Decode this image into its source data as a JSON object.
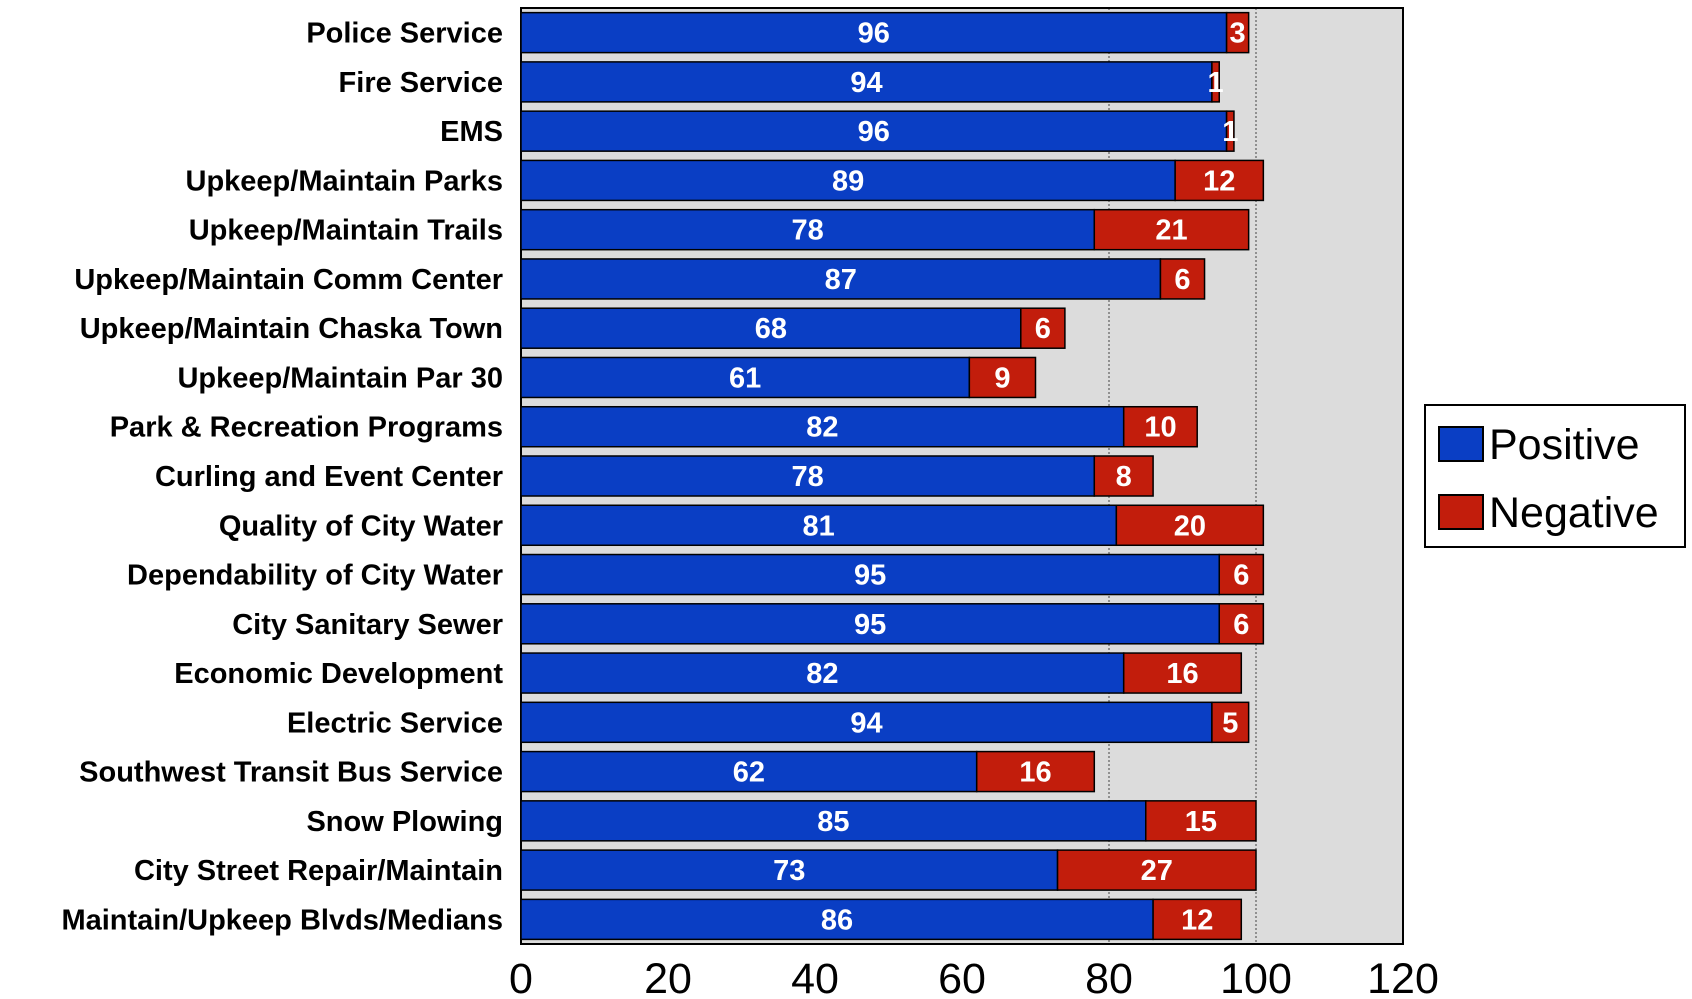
{
  "chart_data": {
    "type": "bar",
    "orientation": "horizontal",
    "stacked": true,
    "categories": [
      "Police Service",
      "Fire Service",
      "EMS",
      "Upkeep/Maintain Parks",
      "Upkeep/Maintain Trails",
      "Upkeep/Maintain Comm Center",
      "Upkeep/Maintain Chaska Town",
      "Upkeep/Maintain Par 30",
      "Park & Recreation Programs",
      "Curling and Event Center",
      "Quality of City Water",
      "Dependability of City Water",
      "City Sanitary Sewer",
      "Economic Development",
      "Electric Service",
      "Southwest Transit Bus Service",
      "Snow Plowing",
      "City Street Repair/Maintain",
      "Maintain/Upkeep Blvds/Medians"
    ],
    "series": [
      {
        "name": "Positive",
        "color": "#0a3ec4",
        "values": [
          96,
          94,
          96,
          89,
          78,
          87,
          68,
          61,
          82,
          78,
          81,
          95,
          95,
          82,
          94,
          62,
          85,
          73,
          86
        ]
      },
      {
        "name": "Negative",
        "color": "#c21d0c",
        "values": [
          3,
          1,
          1,
          12,
          21,
          6,
          6,
          9,
          10,
          8,
          20,
          6,
          6,
          16,
          5,
          16,
          15,
          27,
          12
        ]
      }
    ],
    "xlim": [
      0,
      120
    ],
    "xticks": [
      "0",
      "20",
      "40",
      "60",
      "80",
      "100",
      "120"
    ],
    "gridlines_at": [
      80,
      100
    ],
    "plot_background": "#dcdcdc",
    "legend_placement": "right",
    "title": "",
    "xlabel": "",
    "ylabel": ""
  }
}
